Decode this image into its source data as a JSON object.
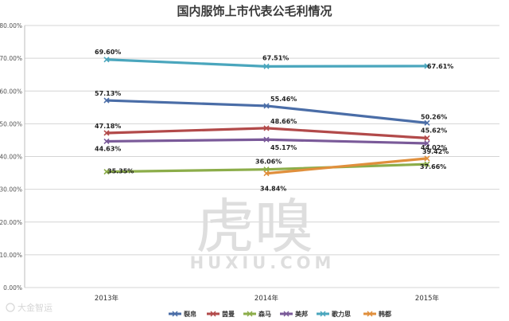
{
  "watermark": {
    "big": "虎嗅",
    "small": "HUXIU.COM"
  },
  "corner_mark": "大金智运",
  "chart_data": {
    "type": "line",
    "title": "国内服饰上市代表公毛利情况",
    "categories": [
      "2013年",
      "2014年",
      "2015年"
    ],
    "ylim": [
      0,
      0.8
    ],
    "yticks": [
      "0.00%",
      "10.00%",
      "20.00%",
      "30.00%",
      "40.00%",
      "50.00%",
      "60.00%",
      "70.00%",
      "80.00%"
    ],
    "grid": true,
    "legend_position": "bottom",
    "series": [
      {
        "name": "裂帛",
        "color": "#4a6da7",
        "values": [
          0.5713,
          0.5546,
          0.5026
        ],
        "labels": [
          "57.13%",
          "55.46%",
          "50.26%"
        ]
      },
      {
        "name": "茵曼",
        "color": "#b24a4a",
        "values": [
          0.4718,
          0.4866,
          0.4562
        ],
        "labels": [
          "47.18%",
          "48.66%",
          "45.62%"
        ]
      },
      {
        "name": "森马",
        "color": "#8cad4a",
        "values": [
          0.3535,
          0.3606,
          0.3766
        ],
        "labels": [
          "35.35%",
          "36.06%",
          "37.66%"
        ]
      },
      {
        "name": "美邦",
        "color": "#7a5a99",
        "values": [
          0.4463,
          0.4517,
          0.4402
        ],
        "labels": [
          "44.63%",
          "45.17%",
          "44.02%"
        ]
      },
      {
        "name": "歌力思",
        "color": "#4aa6bd",
        "values": [
          0.696,
          0.6751,
          0.6761
        ],
        "labels": [
          "69.60%",
          "67.51%",
          "67.61%"
        ]
      },
      {
        "name": "韩都",
        "color": "#e08f3c",
        "values": [
          null,
          0.3484,
          0.3942
        ],
        "labels": [
          "",
          "34.84%",
          "39.42%"
        ]
      }
    ]
  }
}
